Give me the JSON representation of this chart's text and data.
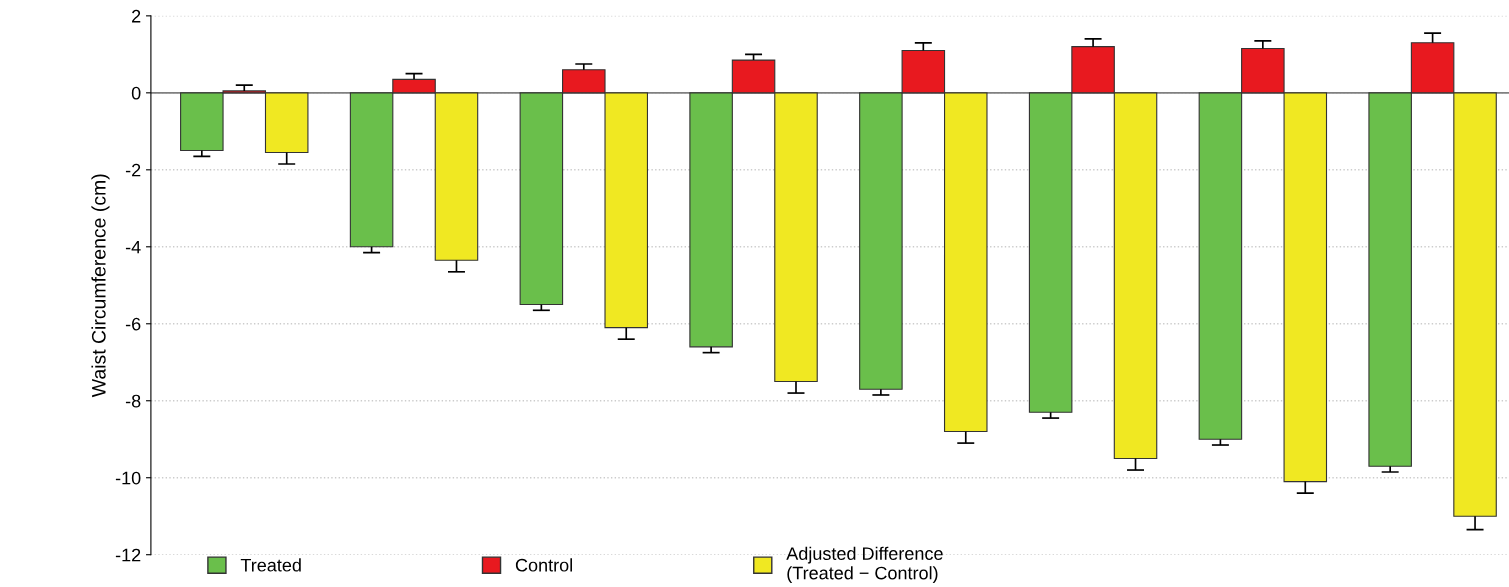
{
  "chart_data": {
    "type": "bar",
    "ylabel": "Waist Circumference (cm)",
    "categories": [
      null,
      null,
      null,
      null,
      null,
      null,
      null,
      null
    ],
    "series": [
      {
        "name": "Treated",
        "color": "#6abf4b",
        "values": [
          -1.5,
          -4.0,
          -5.5,
          -6.6,
          -7.7,
          -8.3,
          -9.0,
          -9.7
        ],
        "errors": [
          [
            -1.65,
            -1.5
          ],
          [
            -4.15,
            -4.0
          ],
          [
            -5.65,
            -5.5
          ],
          [
            -6.75,
            -6.6
          ],
          [
            -7.85,
            -7.7
          ],
          [
            -8.45,
            -8.3
          ],
          [
            -9.15,
            -9.0
          ],
          [
            -9.85,
            -9.7
          ]
        ]
      },
      {
        "name": "Control",
        "color": "#e8191f",
        "values": [
          0.05,
          0.35,
          0.6,
          0.85,
          1.1,
          1.2,
          1.15,
          1.3
        ],
        "errors": [
          [
            0.05,
            0.2
          ],
          [
            0.35,
            0.5
          ],
          [
            0.6,
            0.75
          ],
          [
            0.85,
            1.0
          ],
          [
            1.1,
            1.3
          ],
          [
            1.2,
            1.4
          ],
          [
            1.15,
            1.35
          ],
          [
            1.3,
            1.55
          ]
        ]
      },
      {
        "name": "Adjusted Difference\n(Treated − Control)",
        "color": "#f0e822",
        "values": [
          -1.55,
          -4.35,
          -6.1,
          -7.5,
          -8.8,
          -9.5,
          -10.1,
          -11.0
        ],
        "errors": [
          [
            -1.85,
            -1.55
          ],
          [
            -4.65,
            -4.35
          ],
          [
            -6.4,
            -6.1
          ],
          [
            -7.8,
            -7.5
          ],
          [
            -9.1,
            -8.8
          ],
          [
            -9.8,
            -9.5
          ],
          [
            -10.4,
            -10.1
          ],
          [
            -11.35,
            -11.0
          ]
        ]
      }
    ],
    "ylim": [
      -12,
      2
    ],
    "yticks": [
      -12,
      -10,
      -8,
      -6,
      -4,
      -2,
      0,
      2
    ],
    "grid": "y",
    "legend": "bottom",
    "ref_lines": [
      {
        "axis": "y",
        "value": 0,
        "color": "#808080"
      }
    ]
  }
}
